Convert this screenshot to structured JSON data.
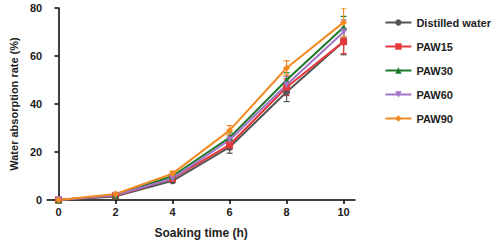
{
  "chart_data": {
    "type": "line",
    "x_label": "Soaking time (h)",
    "y_label": "Water absorption rate (%)",
    "x": [
      0,
      2,
      4,
      6,
      8,
      10
    ],
    "xlim": [
      -0.4,
      10.4
    ],
    "xticks": [
      0,
      2,
      4,
      6,
      8,
      10
    ],
    "ylim": [
      0,
      80
    ],
    "yticks": [
      0,
      20,
      40,
      60,
      80
    ],
    "grid": false,
    "legend": "right",
    "series": [
      {
        "name": "Distilled water",
        "color": "#555555",
        "marker": "circle",
        "values": [
          0,
          1.5,
          8,
          22,
          45,
          66
        ],
        "errors": [
          0,
          0.3,
          0.8,
          2.5,
          4,
          5.5
        ]
      },
      {
        "name": "PAW15",
        "color": "#e5383b",
        "marker": "square",
        "values": [
          0,
          1.8,
          9,
          23,
          47,
          66
        ],
        "errors": [
          0,
          0.3,
          0.8,
          2,
          3.5,
          5
        ]
      },
      {
        "name": "PAW30",
        "color": "#1b7a2a",
        "marker": "triangle",
        "values": [
          0,
          2,
          10,
          26,
          50,
          72
        ],
        "errors": [
          0,
          0.3,
          1,
          2,
          3,
          4.5
        ]
      },
      {
        "name": "PAW60",
        "color": "#a374c8",
        "marker": "triangle_down",
        "values": [
          0,
          2,
          9,
          25,
          48,
          70
        ],
        "errors": [
          0,
          0.3,
          0.9,
          2,
          3.5,
          5
        ]
      },
      {
        "name": "PAW90",
        "color": "#f28a21",
        "marker": "diamond",
        "values": [
          0,
          2.5,
          11,
          29,
          55,
          74
        ],
        "errors": [
          0,
          0.3,
          1,
          2,
          3,
          6
        ]
      }
    ]
  }
}
